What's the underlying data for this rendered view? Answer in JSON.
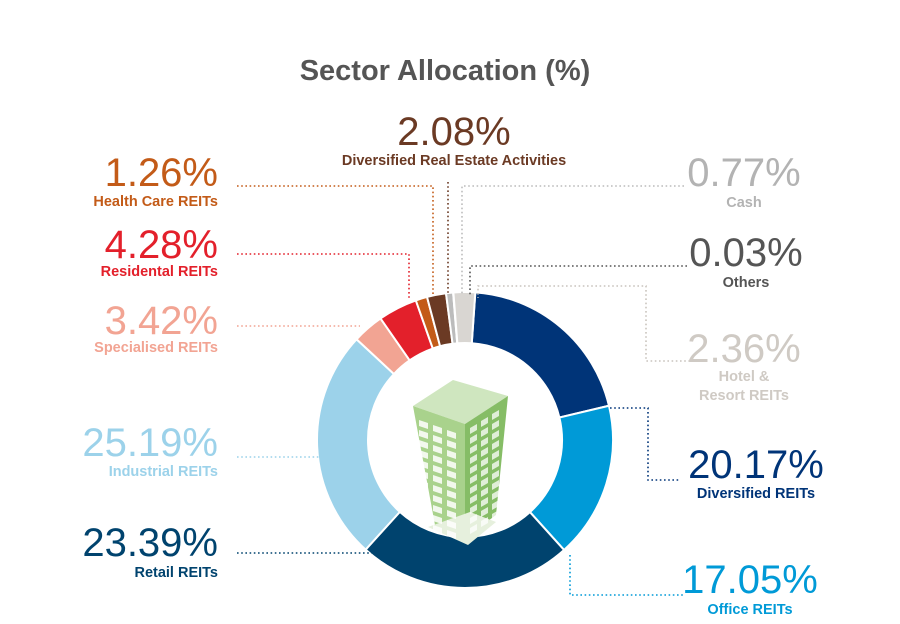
{
  "chart_data": {
    "type": "pie",
    "title": "Sector Allocation (%)",
    "slices": [
      {
        "label": "Diversified REITs",
        "value": 20.17,
        "value_label": "20.17%",
        "color": "#003478"
      },
      {
        "label": "Office REITs",
        "value": 17.05,
        "value_label": "17.05%",
        "color": "#009ad7"
      },
      {
        "label": "Retail REITs",
        "value": 23.39,
        "value_label": "23.39%",
        "color": "#00436e"
      },
      {
        "label": "Industrial REITs",
        "value": 25.19,
        "value_label": "25.19%",
        "color": "#9cd2ea"
      },
      {
        "label": "Specialised REITs",
        "value": 3.42,
        "value_label": "3.42%",
        "color": "#f2a493"
      },
      {
        "label": "Residental REITs",
        "value": 4.28,
        "value_label": "4.28%",
        "color": "#e3202b"
      },
      {
        "label": "Health Care REITs",
        "value": 1.26,
        "value_label": "1.26%",
        "color": "#c35b18"
      },
      {
        "label": "Diversified Real Estate Activities",
        "value": 2.08,
        "value_label": "2.08%",
        "color": "#6b3a24"
      },
      {
        "label": "Cash",
        "value": 0.77,
        "value_label": "0.77%",
        "color": "#bcbcbc"
      },
      {
        "label": "Others",
        "value": 0.03,
        "value_label": "0.03%",
        "color": "#535353"
      },
      {
        "label": "Hotel & Resort REITs",
        "value": 2.36,
        "value_label": "2.36%",
        "color": "#d9d6d2"
      }
    ]
  },
  "decor": {
    "building_icon": "building-icon",
    "building_color": "#8fc071"
  }
}
